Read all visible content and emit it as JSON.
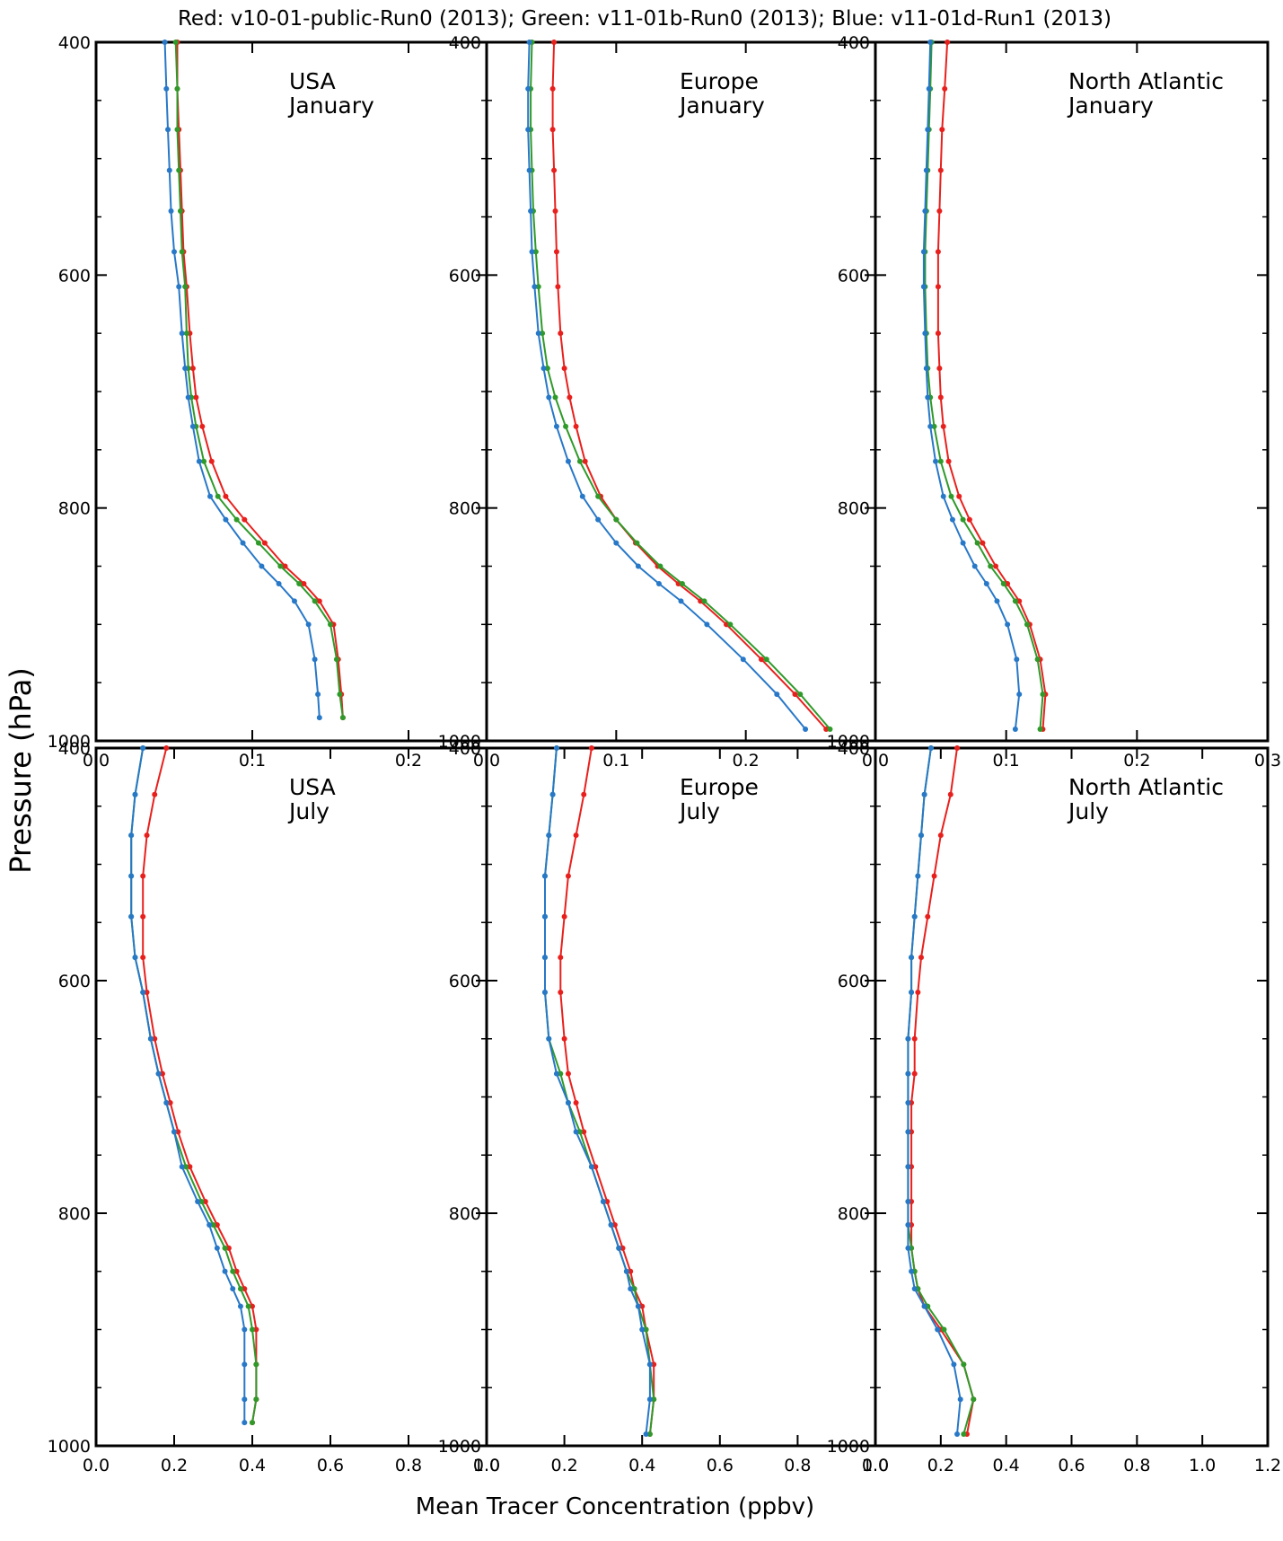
{
  "header": {
    "legend_line": "Red: v10-01-public-Run0 (2013);   Green: v11-01b-Run0 (2013);   Blue: v11-01d-Run1 (2013)"
  },
  "ylabel": "Pressure (hPa)",
  "xlabel": "Mean Tracer Concentration (ppbv)",
  "colors": {
    "red": "#e8201d",
    "green": "#2f9a2a",
    "blue": "#2878c8"
  },
  "chart_data": [
    {
      "type": "line",
      "title": "USA",
      "subtitle": "January",
      "xlim": [
        0,
        0.25
      ],
      "ylim": [
        1000,
        400
      ],
      "xticks": [
        "0.0",
        "0.1",
        "0.2"
      ],
      "xtick_values": [
        0,
        0.1,
        0.2
      ],
      "yticks": [
        "400",
        "600",
        "800",
        "1000"
      ],
      "ytick_values": [
        400,
        600,
        800,
        1000
      ],
      "series": [
        {
          "color": "red",
          "x": [
            0.051,
            0.052,
            0.052,
            0.053,
            0.054,
            0.055,
            0.057,
            0.058,
            0.06,
            0.062,
            0.066,
            0.071,
            0.08,
            0.091,
            0.103,
            0.115,
            0.126,
            0.136,
            0.145,
            0.148,
            0.15,
            0.151
          ],
          "y": [
            400,
            440,
            475,
            510,
            545,
            580,
            610,
            650,
            680,
            705,
            730,
            760,
            790,
            810,
            830,
            850,
            865,
            880,
            900,
            930,
            960,
            980
          ]
        },
        {
          "color": "green",
          "x": [
            0.051,
            0.052,
            0.052,
            0.053,
            0.054,
            0.055,
            0.057,
            0.058,
            0.06,
            0.062,
            0.066,
            0.071,
            0.08,
            0.091,
            0.103,
            0.115,
            0.126,
            0.136,
            0.145,
            0.148,
            0.15,
            0.151
          ],
          "y": [
            400,
            440,
            475,
            510,
            545,
            580,
            610,
            650,
            680,
            705,
            730,
            760,
            790,
            810,
            830,
            850,
            865,
            880,
            900,
            930,
            960,
            980
          ]
        }
      ]
    },
    {
      "type": "line",
      "title": "Europe",
      "subtitle": "January",
      "xlim": [
        0,
        0.3
      ],
      "ylim": [
        1000,
        400
      ],
      "xticks": [
        "0.0",
        "0.1",
        "0.2"
      ],
      "xtick_values": [
        0,
        0.1,
        0.2
      ],
      "yticks": [
        "400",
        "600",
        "800",
        "1000"
      ],
      "ytick_values": [
        400,
        600,
        800,
        1000
      ],
      "series": []
    },
    {
      "type": "line",
      "title": "North Atlantic",
      "subtitle": "January",
      "xlim": [
        0,
        0.3
      ],
      "ylim": [
        1000,
        400
      ],
      "xticks": [
        "0.0",
        "0.1",
        "0.2",
        "0.3"
      ],
      "xtick_values": [
        0,
        0.1,
        0.2,
        0.3
      ],
      "yticks": [
        "400",
        "600",
        "800",
        "1000"
      ],
      "ytick_values": [
        400,
        600,
        800,
        1000
      ],
      "series": []
    },
    {
      "type": "line",
      "title": "USA",
      "subtitle": "July",
      "xlim": [
        0,
        1.0
      ],
      "ylim": [
        1000,
        400
      ],
      "xticks": [
        "0.0",
        "0.2",
        "0.4",
        "0.6",
        "0.8",
        "1.0"
      ],
      "xtick_values": [
        0,
        0.2,
        0.4,
        0.6,
        0.8,
        1.0
      ],
      "yticks": [
        "400",
        "600",
        "800",
        "1000"
      ],
      "ytick_values": [
        400,
        600,
        800,
        1000
      ],
      "series": []
    },
    {
      "type": "line",
      "title": "Europe",
      "subtitle": "July",
      "xlim": [
        0,
        1.0
      ],
      "ylim": [
        1000,
        400
      ],
      "xticks": [
        "0.0",
        "0.2",
        "0.4",
        "0.6",
        "0.8",
        "1.0"
      ],
      "xtick_values": [
        0,
        0.2,
        0.4,
        0.6,
        0.8,
        1.0
      ],
      "yticks": [
        "400",
        "600",
        "800",
        "1000"
      ],
      "ytick_values": [
        400,
        600,
        800,
        1000
      ],
      "series": []
    },
    {
      "type": "line",
      "title": "North Atlantic",
      "subtitle": "July",
      "xlim": [
        0,
        1.2
      ],
      "ylim": [
        1000,
        400
      ],
      "xticks": [
        "0.0",
        "0.2",
        "0.4",
        "0.6",
        "0.8",
        "1.0",
        "1.2"
      ],
      "xtick_values": [
        0,
        0.2,
        0.4,
        0.6,
        0.8,
        1.0,
        1.2
      ],
      "yticks": [
        "400",
        "600",
        "800",
        "1000"
      ],
      "ytick_values": [
        400,
        600,
        800,
        1000
      ],
      "series": []
    }
  ]
}
